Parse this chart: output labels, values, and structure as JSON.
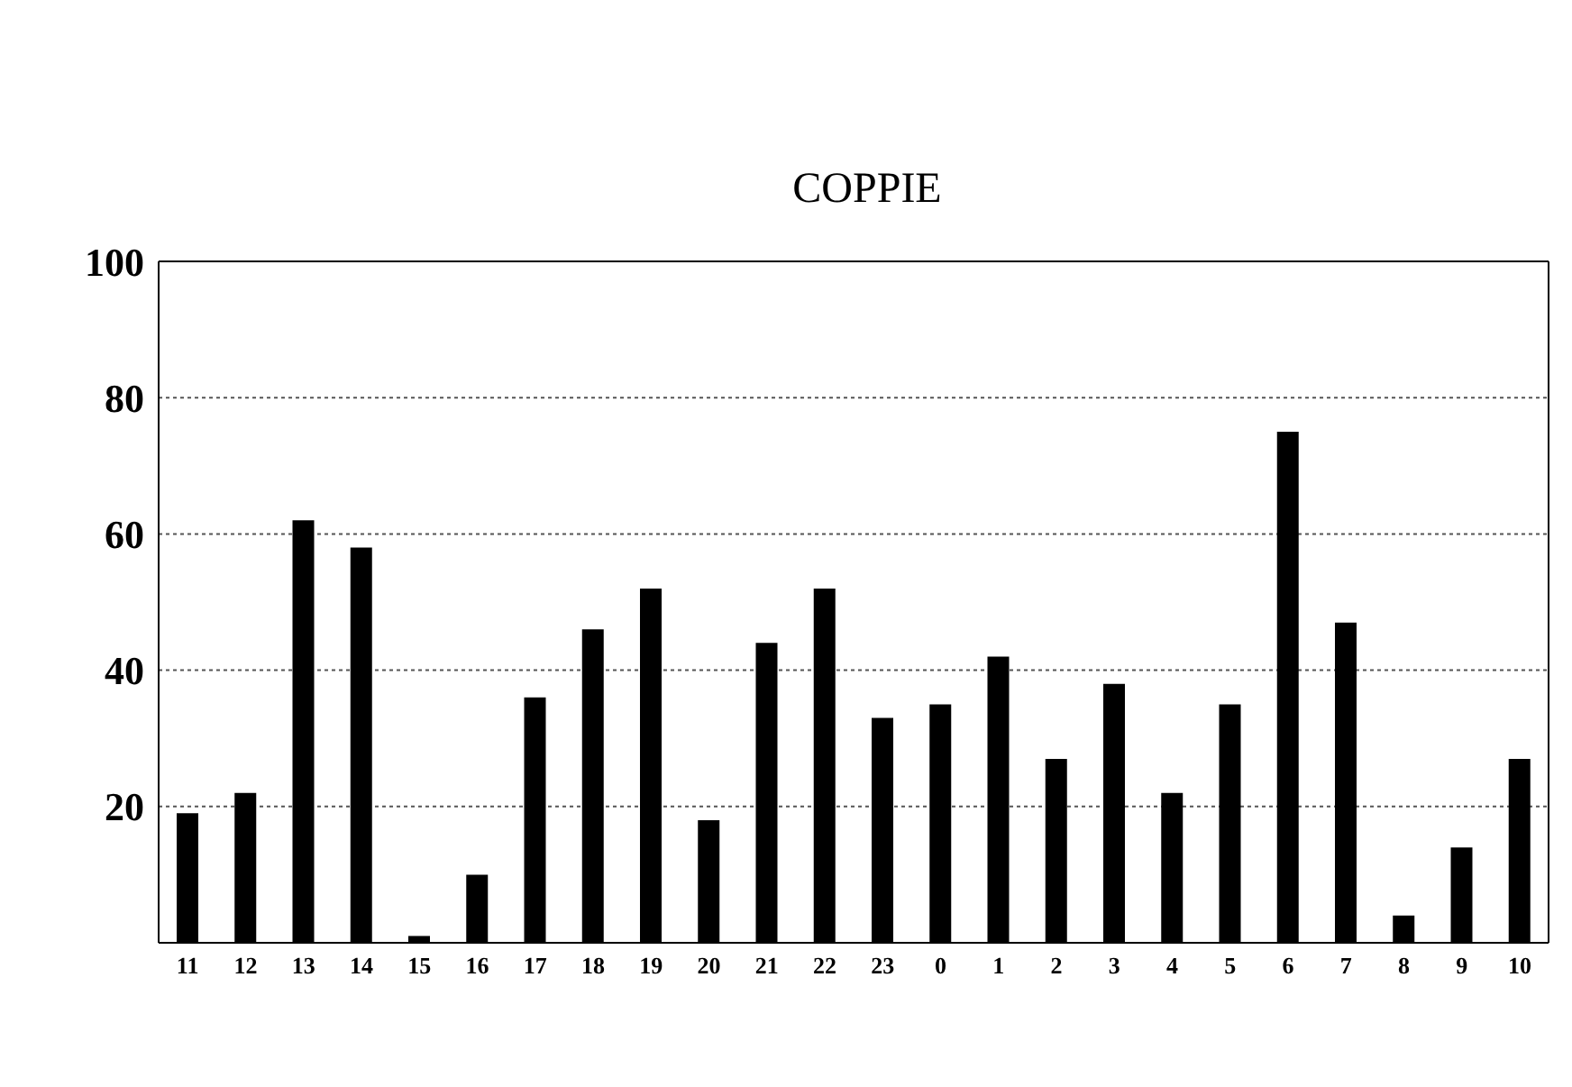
{
  "chart_data": {
    "type": "bar",
    "title": "COPPIE",
    "categories": [
      "11",
      "12",
      "13",
      "14",
      "15",
      "16",
      "17",
      "18",
      "19",
      "20",
      "21",
      "22",
      "23",
      "0",
      "1",
      "2",
      "3",
      "4",
      "5",
      "6",
      "7",
      "8",
      "9",
      "10"
    ],
    "values": [
      19,
      22,
      62,
      58,
      1,
      10,
      36,
      46,
      52,
      18,
      44,
      52,
      33,
      35,
      42,
      27,
      38,
      22,
      35,
      75,
      47,
      4,
      14,
      27
    ],
    "color": "#000000",
    "ylim": [
      0,
      100
    ],
    "yticks": [
      20,
      40,
      60,
      80,
      100
    ],
    "grid": "y"
  }
}
